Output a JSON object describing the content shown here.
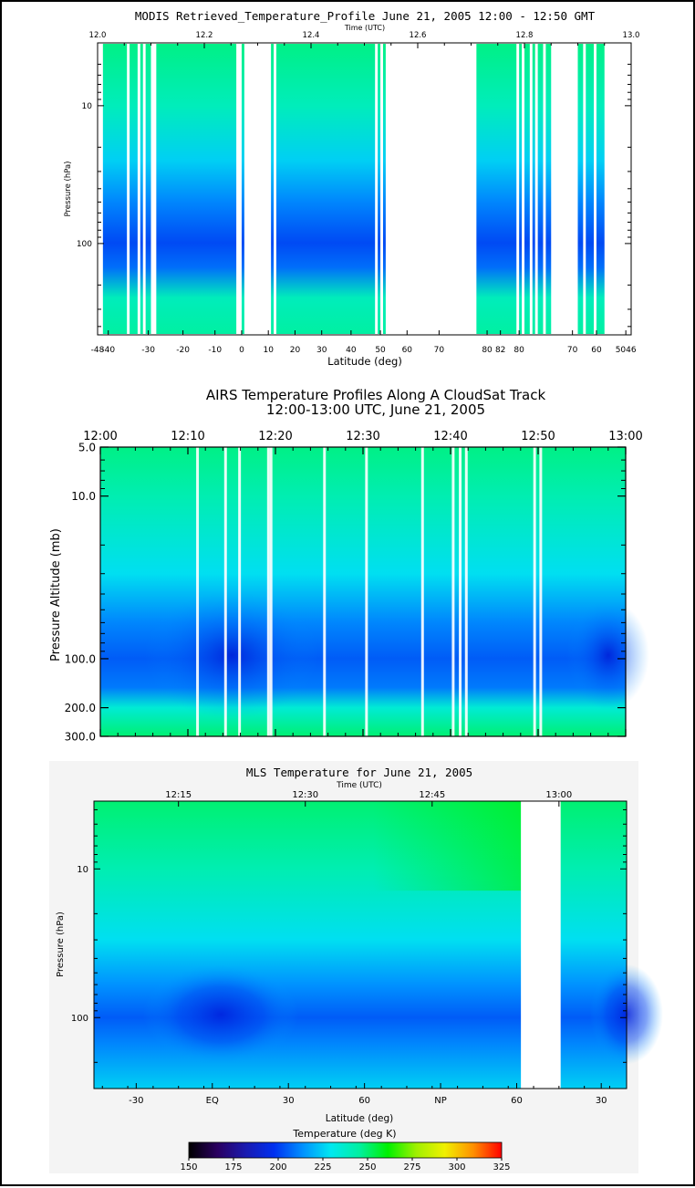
{
  "colors": {
    "colormap": [
      "#000000",
      "#2b0060",
      "#1a1ab0",
      "#0030f0",
      "#0090ff",
      "#00e8f0",
      "#00f0a0",
      "#00f000",
      "#a0f000",
      "#f0f000",
      "#ff9000",
      "#ff0000"
    ],
    "gap": "#ffffff",
    "panel_bg_mls": "#f4f4f4"
  },
  "chart_data": [
    {
      "type": "heatmap",
      "title": "MODIS Retrieved_Temperature_Profile  June 21, 2005 12:00 - 12:50 GMT",
      "xlabel": "Latitude (deg)",
      "x2label": "Time (UTC)",
      "ylabel": "Pressure (hPa)",
      "y_scale": "log",
      "ylim": [
        3.5,
        460
      ],
      "xlim": [
        12.0,
        13.0
      ],
      "top_ticks": [
        "12.0",
        "12.2",
        "12.4",
        "12.6",
        "12.8",
        "13.0"
      ],
      "top_tick_values": [
        12.0,
        12.2,
        12.4,
        12.6,
        12.8,
        13.0
      ],
      "bottom_ticks": [
        "-48",
        "-40",
        "-30",
        "-20",
        "-10",
        "0",
        "10",
        "20",
        "30",
        "40",
        "50",
        "60",
        "70",
        "80",
        "82",
        "80",
        "70",
        "60",
        "5046"
      ],
      "bottom_tick_times": [
        12.0,
        12.02,
        12.095,
        12.16,
        12.22,
        12.27,
        12.32,
        12.37,
        12.42,
        12.475,
        12.53,
        12.58,
        12.64,
        12.73,
        12.755,
        12.79,
        12.89,
        12.935,
        12.99
      ],
      "yticks": [
        "10",
        "100"
      ],
      "ytick_values": [
        10,
        100
      ],
      "data_intervals": [
        [
          12.01,
          12.055
        ],
        [
          12.06,
          12.075
        ],
        [
          12.08,
          12.085
        ],
        [
          12.09,
          12.1
        ],
        [
          12.11,
          12.26
        ],
        [
          12.27,
          12.275
        ],
        [
          12.325,
          12.33
        ],
        [
          12.335,
          12.52
        ],
        [
          12.525,
          12.53
        ],
        [
          12.535,
          12.54
        ],
        [
          12.71,
          12.785
        ],
        [
          12.79,
          12.795
        ],
        [
          12.8,
          12.81
        ],
        [
          12.815,
          12.82
        ],
        [
          12.825,
          12.835
        ],
        [
          12.84,
          12.85
        ],
        [
          12.9,
          12.91
        ],
        [
          12.915,
          12.93
        ],
        [
          12.935,
          12.95
        ]
      ],
      "profile": {
        "pressure_hPa": [
          3.5,
          10,
          25,
          50,
          80,
          100,
          150,
          250,
          460
        ],
        "temperature_K": [
          248,
          240,
          225,
          212,
          205,
          202,
          208,
          240,
          245
        ]
      }
    },
    {
      "type": "heatmap",
      "title": "AIRS Temperature Profiles Along A CloudSat Track",
      "subtitle": "12:00-13:00 UTC, June 21, 2005",
      "ylabel": "Pressure Altitude (mb)",
      "y_scale": "log",
      "ylim": [
        5.0,
        300.0
      ],
      "xlim": [
        "12:00",
        "13:00"
      ],
      "top_ticks": [
        "12:00",
        "12:10",
        "12:20",
        "12:30",
        "12:40",
        "12:50",
        "13:00"
      ],
      "top_tick_minutes": [
        0,
        10,
        20,
        30,
        40,
        50,
        60
      ],
      "yticks": [
        "5.0",
        "10.0",
        "100.0",
        "200.0",
        "300.0"
      ],
      "ytick_values": [
        5,
        10,
        100,
        200,
        300
      ],
      "gap_minutes": [
        11.1,
        14.3,
        15.9,
        19.2,
        19.5,
        25.6,
        30.4,
        36.8,
        40.3,
        41.1,
        41.8,
        49.6,
        50.3
      ],
      "profile": {
        "pressure_mb": [
          5,
          10,
          30,
          60,
          100,
          150,
          200,
          300
        ],
        "temperature_K": [
          248,
          242,
          228,
          212,
          205,
          210,
          235,
          250
        ]
      }
    },
    {
      "type": "heatmap",
      "title": "MLS Temperature for June 21, 2005",
      "x2label": "Time (UTC)",
      "xlabel": "Latitude (deg)",
      "ylabel": "Pressure (hPa)",
      "y_scale": "log",
      "ylim": [
        3.5,
        300
      ],
      "top_ticks": [
        "12:15",
        "12:30",
        "12:45",
        "13:00"
      ],
      "top_tick_minutes": [
        15,
        30,
        45,
        60
      ],
      "xlim_minutes": [
        5,
        68
      ],
      "bottom_ticks": [
        "-30",
        "EQ",
        "30",
        "60",
        "NP",
        "60",
        "30"
      ],
      "bottom_tick_minutes": [
        10,
        19,
        28,
        37,
        46,
        55,
        65
      ],
      "yticks": [
        "10",
        "100"
      ],
      "ytick_values": [
        10,
        100
      ],
      "gap_minutes": [
        55.5,
        60.2
      ],
      "profile": {
        "pressure_hPa": [
          3.5,
          10,
          30,
          60,
          100,
          150,
          300
        ],
        "temperature_K": [
          250,
          242,
          228,
          214,
          205,
          212,
          225
        ]
      },
      "colorbar": {
        "label": "Temperature (deg K)",
        "range": [
          150,
          325
        ],
        "ticks": [
          "150",
          "175",
          "200",
          "225",
          "250",
          "275",
          "300",
          "325"
        ]
      }
    }
  ]
}
